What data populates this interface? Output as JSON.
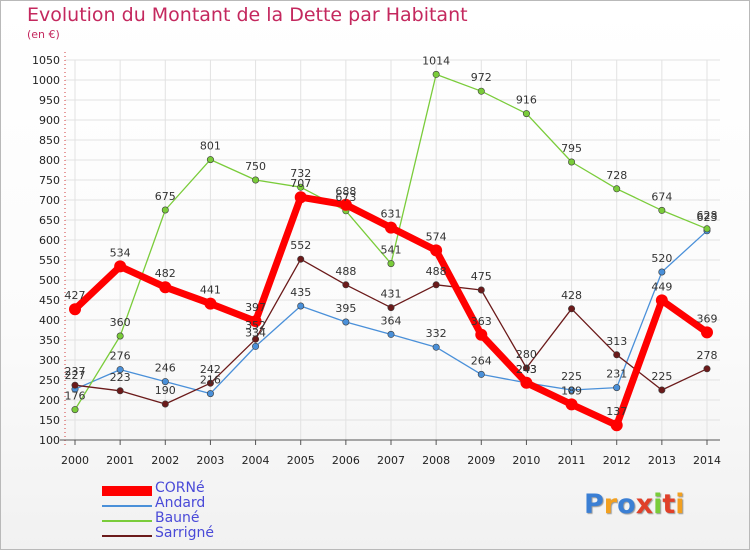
{
  "title": "Evolution du Montant de la Dette par Habitant",
  "unit": "(en €)",
  "logo": {
    "text": "Proxiti"
  },
  "chart_data": {
    "type": "line",
    "title": "Evolution du Montant de la Dette par Habitant",
    "ylabel": "(en €)",
    "x": [
      "2000",
      "2001",
      "2002",
      "2003",
      "2004",
      "2005",
      "2006",
      "2007",
      "2008",
      "2009",
      "2010",
      "2011",
      "2012",
      "2013",
      "2014"
    ],
    "ylim": [
      100,
      1050
    ],
    "yticks": [
      "100",
      "150",
      "200",
      "250",
      "300",
      "350",
      "400",
      "450",
      "500",
      "550",
      "600",
      "650",
      "700",
      "750",
      "800",
      "850",
      "900",
      "950",
      "1000",
      "1050"
    ],
    "grid": true,
    "legend": "bottom-left",
    "series": [
      {
        "name": "CORNé",
        "color": "#ff0000",
        "values": [
          427,
          534,
          482,
          441,
          397,
          707,
          688,
          631,
          574,
          363,
          243,
          189,
          137,
          449,
          369
        ]
      },
      {
        "name": "Andard",
        "color": "#4a90d9",
        "values": [
          227,
          276,
          246,
          216,
          334,
          435,
          395,
          364,
          332,
          264,
          243,
          225,
          231,
          520,
          623
        ]
      },
      {
        "name": "Bauné",
        "color": "#7acc3a",
        "values": [
          176,
          360,
          675,
          801,
          750,
          732,
          673,
          541,
          1014,
          972,
          916,
          795,
          728,
          674,
          628
        ]
      },
      {
        "name": "Sarrigné",
        "color": "#6b1a1a",
        "values": [
          237,
          223,
          190,
          242,
          352,
          552,
          488,
          431,
          488,
          475,
          280,
          428,
          313,
          225,
          278
        ]
      }
    ]
  }
}
